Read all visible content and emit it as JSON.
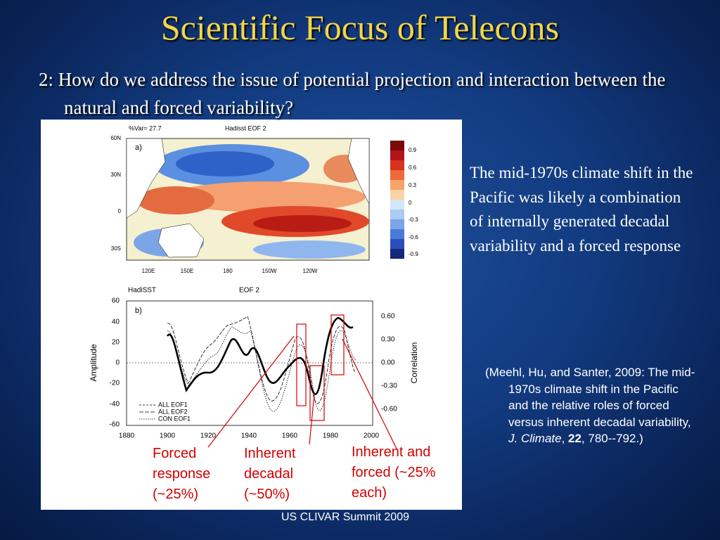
{
  "title": "Scientific Focus of Telecons",
  "subtitle": "2: How do we address the issue of potential projection and interaction between the natural and forced variability?",
  "figure": {
    "map": {
      "var_label": "%Var= 27.7",
      "title": "Hadisst EOF 2",
      "panel": "a)",
      "lat_labels": [
        "60N",
        "30N",
        "0",
        "30S"
      ],
      "lon_labels": [
        "120E",
        "150E",
        "180",
        "150W",
        "120W"
      ],
      "colorbar_labels": [
        "0.9",
        "0.6",
        "0.3",
        "0",
        "-0.3",
        "-0.6",
        "-0.9"
      ]
    },
    "timeseries": {
      "left_title": "HadiSST",
      "title": "EOF 2",
      "panel": "b)",
      "y_label": "Amplitude",
      "y2_label": "Correlation",
      "yticks": [
        "60",
        "40",
        "20",
        "0",
        "-20",
        "-40",
        "-60"
      ],
      "y2ticks": [
        "0.60",
        "0.30",
        "0.00",
        "-0.30",
        "-0.60"
      ],
      "xticks": [
        "1880",
        "1900",
        "1920",
        "1940",
        "1960",
        "1980",
        "2000"
      ],
      "legend": [
        "ALL EOF1",
        "ALL EOF2",
        "CON EOF1"
      ]
    }
  },
  "annotations": [
    "Forced response (~25%)",
    "Inherent decadal (~50%)",
    "Inherent and forced (~25% each)"
  ],
  "summary": "The mid-1970s climate shift in the Pacific was likely a combination of internally generated decadal variability and a forced response",
  "citation": {
    "prefix": "(Meehl, Hu, and Santer, 2009: The mid-1970s climate shift in the Pacific and the relative roles of forced versus inherent decadal variability, ",
    "journal": "J. Climate",
    "sep1": ", ",
    "volume": "22",
    "suffix": ", 780--792.)"
  },
  "footer": "US CLIVAR Summit 2009"
}
